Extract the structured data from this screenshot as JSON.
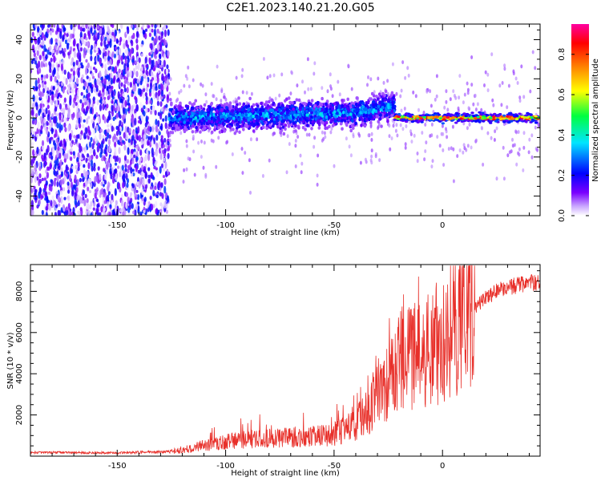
{
  "title": "C2E1.2023.140.21.20.G05",
  "colors": {
    "snr_line": "#e8302a",
    "colormap": [
      "#ffffff",
      "#e6c8ff",
      "#8a00ff",
      "#3c00ff",
      "#0000ff",
      "#00e5ff",
      "#00ff40",
      "#ffff00",
      "#ff7f00",
      "#ff0000",
      "#ff00a0"
    ]
  },
  "chart_data": [
    {
      "type": "heatmap",
      "xlabel": "Height of straight line (km)",
      "ylabel": "Frequency (Hz)",
      "xlim": [
        -190,
        45
      ],
      "ylim": [
        -50,
        48
      ],
      "xticks": [
        -150,
        -100,
        -50,
        0
      ],
      "yticks": [
        -40,
        -20,
        0,
        20,
        40
      ],
      "colorbar": {
        "label": "Normalized spectral amplitude",
        "range": [
          0.0,
          0.95
        ],
        "ticks": [
          "0.0",
          "0.2",
          "0.4",
          "0.6",
          "0.8"
        ]
      },
      "features": [
        {
          "x_range": [
            -190,
            -126
          ],
          "y_range": [
            -50,
            48
          ],
          "amplitude": 0.12,
          "description_level": "noise"
        },
        {
          "x_range": [
            -126,
            -22
          ],
          "y_center": 0,
          "y_halfwidth": 6,
          "amplitude": 0.3
        },
        {
          "x_range": [
            -22,
            45
          ],
          "y_center": 0,
          "y_halfwidth": 2,
          "amplitude": 0.82
        }
      ]
    },
    {
      "type": "line",
      "xlabel": "Height of straight line (km)",
      "ylabel": "SNR (10 * v/v)",
      "xlim": [
        -190,
        45
      ],
      "ylim": [
        0,
        9300
      ],
      "xticks": [
        -150,
        -100,
        -50,
        0
      ],
      "yticks": [
        2000,
        4000,
        6000,
        8000
      ],
      "series": [
        {
          "x": [
            -190,
            -150,
            -125,
            -110,
            -100,
            -90,
            -80,
            -70,
            -60,
            -55,
            -50,
            -45,
            -40,
            -35,
            -30,
            -25,
            -20,
            -15,
            -10,
            -5,
            0,
            5,
            10,
            15,
            20,
            25,
            30,
            35,
            40,
            45
          ],
          "values": [
            180,
            160,
            220,
            520,
            700,
            820,
            880,
            920,
            950,
            980,
            1050,
            1350,
            1650,
            2100,
            2700,
            3500,
            4500,
            4800,
            5200,
            5400,
            5600,
            6300,
            6700,
            7200,
            7700,
            8000,
            8200,
            8300,
            8400,
            8400
          ]
        }
      ]
    }
  ]
}
